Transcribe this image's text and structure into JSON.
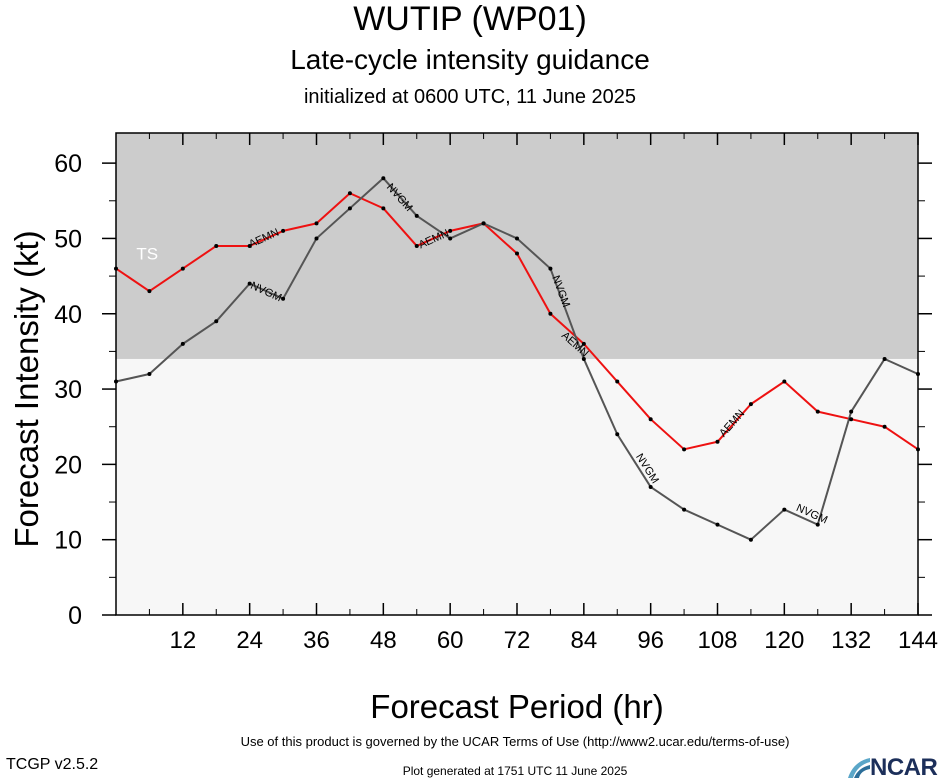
{
  "header": {
    "title": "WUTIP (WP01)",
    "subtitle": "Late-cycle intensity guidance",
    "init": "initialized at 0600 UTC, 11 June 2025"
  },
  "footer": {
    "terms": "Use of this product is governed by the UCAR Terms of Use (http://www2.ucar.edu/terms-of-use)",
    "version": "TCGP v2.5.2",
    "generated": "Plot generated at 1751 UTC   11 June 2025",
    "logo": "NCAR"
  },
  "chart_data": {
    "type": "line",
    "title": "WUTIP (WP01)",
    "subtitle": "Late-cycle intensity guidance",
    "xlabel": "Forecast Period (hr)",
    "ylabel": "Forecast Intensity (kt)",
    "xlim": [
      0,
      144
    ],
    "ylim": [
      0,
      64
    ],
    "xticks": [
      12,
      24,
      36,
      48,
      60,
      72,
      84,
      96,
      108,
      120,
      132,
      144
    ],
    "yticks": [
      0,
      10,
      20,
      30,
      40,
      50,
      60
    ],
    "band": {
      "label": "TS",
      "from": 34,
      "to": 64,
      "color": "#cccccc"
    },
    "background_color": "#f7f7f7",
    "series": [
      {
        "name": "AEMN",
        "color": "#ee1111",
        "x": [
          0,
          6,
          12,
          18,
          24,
          30,
          36,
          42,
          48,
          54,
          60,
          66,
          72,
          78,
          84,
          90,
          96,
          102,
          108,
          114,
          120,
          126,
          132,
          138,
          144
        ],
        "y": [
          46,
          43,
          46,
          49,
          49,
          51,
          52,
          56,
          54,
          49,
          51,
          52,
          48,
          40,
          36,
          31,
          26,
          22,
          23,
          28,
          31,
          27,
          26,
          25,
          22
        ],
        "labels_at": [
          [
            26.5,
            50.1
          ],
          [
            57,
            50
          ],
          [
            82.5,
            36
          ],
          [
            110.5,
            25.5
          ]
        ]
      },
      {
        "name": "NVGM",
        "color": "#555555",
        "x": [
          0,
          6,
          12,
          18,
          24,
          30,
          36,
          42,
          48,
          54,
          60,
          66,
          72,
          78,
          84,
          90,
          96,
          102,
          108,
          114,
          120,
          126,
          132,
          138,
          144
        ],
        "y": [
          31,
          32,
          36,
          39,
          44,
          42,
          50,
          54,
          58,
          53,
          50,
          52,
          50,
          46,
          34,
          24,
          17,
          14,
          12,
          10,
          14,
          12,
          27,
          34,
          32
        ],
        "labels_at": [
          [
            27,
            43
          ],
          [
            51,
            55.5
          ],
          [
            80,
            43
          ],
          [
            95.5,
            19.5
          ],
          [
            125,
            13.5
          ]
        ]
      }
    ]
  }
}
